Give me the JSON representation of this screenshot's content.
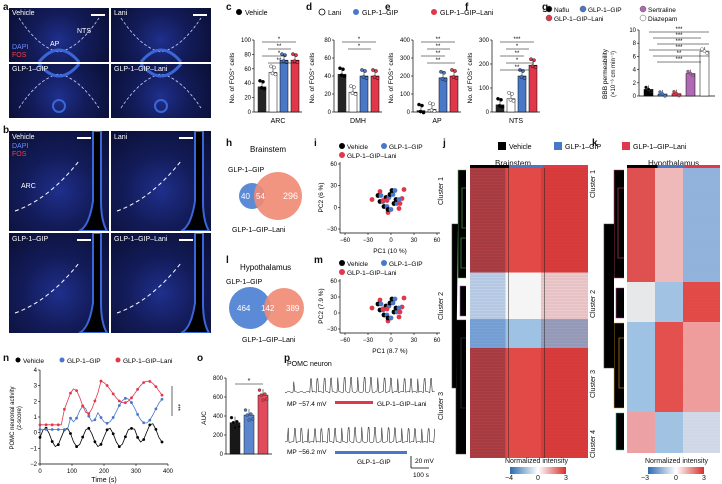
{
  "panels": {
    "a": "a",
    "b": "b",
    "c": "c",
    "d": "d",
    "e": "e",
    "f": "f",
    "g": "g",
    "h": "h",
    "i": "i",
    "j": "j",
    "k": "k",
    "l": "l",
    "m": "m",
    "n": "n",
    "o": "o",
    "p": "p"
  },
  "a": {
    "tiles": [
      "Vehicle",
      "Lani",
      "GLP-1–GIP",
      "GLP-1–GIP–Lani"
    ],
    "ap": "AP",
    "nts": "NTS",
    "dapi": "DAPI",
    "fos": "FOS"
  },
  "b": {
    "tiles": [
      "Vehicle",
      "Lani",
      "GLP-1–GIP",
      "GLP-1–GIP–Lani"
    ],
    "arc": "ARC",
    "dapi": "DAPI",
    "fos": "FOS"
  },
  "legend_cdf": {
    "vehicle": "Vehicle",
    "lani": "Lani",
    "glp": "GLP-1–GIP",
    "glplani": "GLP-1–GIP–Lani"
  },
  "colors": {
    "vehicle": "#000000",
    "lani": "#ffffff",
    "glp": "#4a78c8",
    "glplani": "#e0374a",
    "sertraline": "#b06ab3",
    "diazepam": "#ffffff"
  },
  "bars": {
    "ylabel": "No. of FOS⁺ cells",
    "c": {
      "region": "ARC",
      "ymax": 100,
      "ticks": [
        0,
        20,
        40,
        60,
        80,
        100
      ],
      "values": [
        35,
        55,
        72,
        72
      ],
      "sig": [
        "*",
        "**",
        "*",
        "**"
      ]
    },
    "d": {
      "region": "DMH",
      "ymax": 80,
      "ticks": [
        0,
        20,
        40,
        60,
        80
      ],
      "values": [
        42,
        22,
        40,
        40
      ],
      "sig": [
        "*",
        "*"
      ]
    },
    "e": {
      "region": "AP",
      "ymax": 400,
      "ticks": [
        0,
        100,
        200,
        300,
        400
      ],
      "values": [
        8,
        15,
        190,
        200
      ],
      "sig": [
        "**",
        "**",
        "**",
        "**"
      ]
    },
    "f": {
      "region": "NTS",
      "ymax": 300,
      "ticks": [
        0,
        100,
        200,
        300
      ],
      "values": [
        30,
        55,
        150,
        195
      ],
      "sig": [
        "***",
        "*",
        "**",
        "*",
        "**"
      ]
    }
  },
  "g": {
    "legend": [
      "Naflu",
      "GLP-1–GIP",
      "Sertraline",
      "GLP-1–GIP–Lani",
      "Diazepam"
    ],
    "ylabel": "BBB permeability",
    "yunit": "(×10⁻⁶ cm min⁻¹)",
    "ticks": [
      0,
      2,
      4,
      6,
      8,
      10
    ],
    "values": [
      1.0,
      0.3,
      0.35,
      3.4,
      6.8
    ],
    "sig": [
      "***",
      "***",
      "***",
      "***",
      "**",
      "***"
    ]
  },
  "h": {
    "title": "Brainstem",
    "a_label": "GLP-1–GIP",
    "b_label": "GLP-1–GIP–Lani",
    "only_a": "40",
    "both": "54",
    "only_b": "296"
  },
  "l": {
    "title": "Hypothalamus",
    "a_label": "GLP-1–GIP",
    "b_label": "GLP-1–GIP–Lani",
    "only_a": "464",
    "both": "142",
    "only_b": "389"
  },
  "i": {
    "legend": [
      "Vehicle",
      "GLP-1–GIP",
      "GLP-1–GIP–Lani"
    ],
    "xlabel": "PC1 (10 %)",
    "ylabel": "PC2 (6 %)",
    "xticks": [
      "−60",
      "−30",
      "0",
      "30",
      "60"
    ],
    "yticks": [
      "−30",
      "0",
      "30",
      "60"
    ]
  },
  "m": {
    "legend": [
      "Vehicle",
      "GLP-1–GIP",
      "GLP-1–GIP–Lani"
    ],
    "xlabel": "PC1 (8.7 %)",
    "ylabel": "PC2 (7.9 %)",
    "xticks": [
      "−60",
      "−30",
      "0",
      "30",
      "60"
    ],
    "yticks": [
      "−30",
      "0",
      "30",
      "60"
    ]
  },
  "jk_legend": {
    "vehicle": "Vehicle",
    "glp": "GLP-1–GIP",
    "glplani": "GLP-1–GIP–Lani"
  },
  "j": {
    "title": "Brainstem",
    "clusters": [
      "Cluster 1",
      "Cluster 2",
      "Cluster 3"
    ],
    "cb_label": "Normalized intensity",
    "cb_ticks": [
      "−4",
      "0",
      "3"
    ]
  },
  "k": {
    "title": "Hypothalamus",
    "clusters": [
      "Cluster 1",
      "Cluster 2",
      "Cluster 3",
      "Cluster 4"
    ],
    "cb_label": "Normalized intensity",
    "cb_ticks": [
      "−3",
      "0",
      "3"
    ]
  },
  "n": {
    "legend": [
      "Vehicle",
      "GLP-1–GIP",
      "GLP-1–GIP–Lani"
    ],
    "ylabel": "POMC neuronal activity",
    "yunit": "(z-score)",
    "xlabel": "Time (s)",
    "xticks": [
      "0",
      "100",
      "200",
      "300",
      "400"
    ],
    "yticks": [
      "−2",
      "−1",
      "0",
      "1",
      "2",
      "3",
      "4"
    ],
    "sig": "***"
  },
  "o": {
    "ylabel": "AUC",
    "ticks": [
      "0",
      "200",
      "400",
      "600",
      "800"
    ],
    "values": [
      330,
      410,
      620
    ],
    "sig": "*"
  },
  "p": {
    "title": "POMC neuron",
    "mp1": "MP −57.4 mV",
    "mp2": "MP −56.2 mV",
    "drug1": "GLP-1–GIP–Lani",
    "drug2": "GLP-1–GIP",
    "v_scale": "20 mV",
    "t_scale": "100 s"
  }
}
